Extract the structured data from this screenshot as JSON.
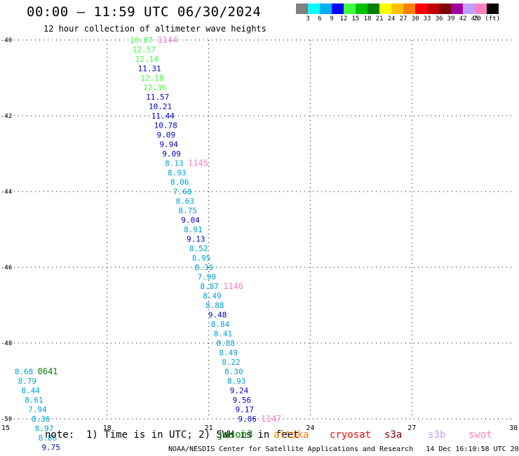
{
  "header": {
    "title": "00:00 – 11:59 UTC 06/30/2024",
    "subtitle": "12 hour collection of altimeter wave heights"
  },
  "colorbar": {
    "colors": [
      "#808080",
      "#00ffff",
      "#00b0f0",
      "#0000ff",
      "#40ff40",
      "#00c000",
      "#008000",
      "#ffff00",
      "#ffc000",
      "#ff8000",
      "#ff0000",
      "#c00000",
      "#800000",
      "#a000a0",
      "#c0a0ff",
      "#ff80c0",
      "#000000"
    ],
    "labels": [
      "3",
      "6",
      "9",
      "12",
      "15",
      "18",
      "21",
      "24",
      "27",
      "30",
      "33",
      "36",
      "39",
      "42",
      "45",
      "70 (ft)"
    ]
  },
  "map": {
    "lon_ticks": [
      "15",
      "18",
      "21",
      "24",
      "27",
      "30"
    ],
    "lat_ticks": [
      "-40",
      "-42",
      "-44",
      "-46",
      "-48",
      "-50"
    ],
    "lon_range": [
      15,
      30
    ],
    "lat_range": [
      -50,
      -40
    ],
    "grid": "dotted"
  },
  "tracks": [
    {
      "pass_label": "1144",
      "pass_color": "#ff80c0",
      "points": [
        {
          "lon": 18.5,
          "lat": -40.0,
          "swh": "10.87",
          "color": "#40ff40"
        },
        {
          "lon": 18.58,
          "lat": -40.25,
          "swh": "12.57",
          "color": "#40ff40"
        },
        {
          "lon": 18.66,
          "lat": -40.5,
          "swh": "12.14",
          "color": "#40ff40"
        },
        {
          "lon": 18.74,
          "lat": -40.75,
          "swh": "11.31",
          "color": "#0000cc"
        },
        {
          "lon": 18.82,
          "lat": -41.0,
          "swh": "12.18",
          "color": "#40ff40"
        },
        {
          "lon": 18.9,
          "lat": -41.25,
          "swh": "12.36",
          "color": "#40ff40"
        },
        {
          "lon": 18.98,
          "lat": -41.5,
          "swh": "11.57",
          "color": "#0000cc"
        },
        {
          "lon": 19.06,
          "lat": -41.75,
          "swh": "10.21",
          "color": "#0000cc"
        },
        {
          "lon": 19.14,
          "lat": -42.0,
          "swh": "11.44",
          "color": "#0000cc"
        },
        {
          "lon": 19.22,
          "lat": -42.25,
          "swh": "10.78",
          "color": "#0000cc"
        },
        {
          "lon": 19.3,
          "lat": -42.5,
          "swh": "9.09",
          "color": "#0000cc"
        },
        {
          "lon": 19.38,
          "lat": -42.75,
          "swh": "9.94",
          "color": "#0000cc"
        },
        {
          "lon": 19.46,
          "lat": -43.0,
          "swh": "9.09",
          "color": "#0000cc"
        }
      ]
    },
    {
      "pass_label": "1145",
      "pass_color": "#ff80c0",
      "points": [
        {
          "lon": 19.54,
          "lat": -43.25,
          "swh": "8.13",
          "color": "#00a0d8"
        },
        {
          "lon": 19.62,
          "lat": -43.5,
          "swh": "8.93",
          "color": "#00a0d8"
        },
        {
          "lon": 19.7,
          "lat": -43.75,
          "swh": "8.06",
          "color": "#00a0d8"
        },
        {
          "lon": 19.78,
          "lat": -44.0,
          "swh": "7.68",
          "color": "#00a0d8"
        },
        {
          "lon": 19.86,
          "lat": -44.25,
          "swh": "8.63",
          "color": "#00a0d8"
        },
        {
          "lon": 19.94,
          "lat": -44.5,
          "swh": "8.75",
          "color": "#00a0d8"
        },
        {
          "lon": 20.02,
          "lat": -44.75,
          "swh": "9.04",
          "color": "#0000cc"
        },
        {
          "lon": 20.1,
          "lat": -45.0,
          "swh": "8.91",
          "color": "#00a0d8"
        },
        {
          "lon": 20.18,
          "lat": -45.25,
          "swh": "9.13",
          "color": "#0000cc"
        },
        {
          "lon": 20.26,
          "lat": -45.5,
          "swh": "8.52",
          "color": "#00a0d8"
        },
        {
          "lon": 20.34,
          "lat": -45.75,
          "swh": "8.95",
          "color": "#00a0d8"
        },
        {
          "lon": 20.42,
          "lat": -46.0,
          "swh": "8.39",
          "color": "#00a0d8"
        },
        {
          "lon": 20.5,
          "lat": -46.25,
          "swh": "7.90",
          "color": "#00a0d8"
        }
      ]
    },
    {
      "pass_label": "1146",
      "pass_color": "#ff80c0",
      "points": [
        {
          "lon": 20.58,
          "lat": -46.5,
          "swh": "8.87",
          "color": "#00a0d8"
        },
        {
          "lon": 20.66,
          "lat": -46.75,
          "swh": "8.49",
          "color": "#00a0d8"
        },
        {
          "lon": 20.74,
          "lat": -47.0,
          "swh": "8.88",
          "color": "#00a0d8"
        },
        {
          "lon": 20.82,
          "lat": -47.25,
          "swh": "9.48",
          "color": "#0000cc"
        },
        {
          "lon": 20.9,
          "lat": -47.5,
          "swh": "8.84",
          "color": "#00a0d8"
        },
        {
          "lon": 20.98,
          "lat": -47.75,
          "swh": "8.41",
          "color": "#00a0d8"
        },
        {
          "lon": 21.06,
          "lat": -48.0,
          "swh": "8.88",
          "color": "#00a0d8"
        },
        {
          "lon": 21.14,
          "lat": -48.25,
          "swh": "8.49",
          "color": "#00a0d8"
        },
        {
          "lon": 21.22,
          "lat": -48.5,
          "swh": "8.22",
          "color": "#00a0d8"
        },
        {
          "lon": 21.3,
          "lat": -48.75,
          "swh": "8.30",
          "color": "#00a0d8"
        },
        {
          "lon": 21.38,
          "lat": -49.0,
          "swh": "8.93",
          "color": "#00a0d8"
        },
        {
          "lon": 21.46,
          "lat": -49.25,
          "swh": "9.24",
          "color": "#0000cc"
        },
        {
          "lon": 21.54,
          "lat": -49.5,
          "swh": "9.56",
          "color": "#0000cc"
        },
        {
          "lon": 21.62,
          "lat": -49.75,
          "swh": "9.17",
          "color": "#0000cc"
        }
      ]
    },
    {
      "pass_label": "1147",
      "pass_color": "#ff80c0",
      "points": [
        {
          "lon": 21.7,
          "lat": -50.0,
          "swh": "9.06",
          "color": "#0000cc"
        }
      ]
    },
    {
      "pass_label": "0641",
      "pass_color": "#008000",
      "points": [
        {
          "lon": 15.1,
          "lat": -48.75,
          "swh": "8.68",
          "color": "#00a0d8"
        },
        {
          "lon": 15.2,
          "lat": -49.0,
          "swh": "8.79",
          "color": "#00a0d8"
        },
        {
          "lon": 15.3,
          "lat": -49.25,
          "swh": "8.44",
          "color": "#00a0d8"
        },
        {
          "lon": 15.4,
          "lat": -49.5,
          "swh": "8.61",
          "color": "#00a0d8"
        },
        {
          "lon": 15.5,
          "lat": -49.75,
          "swh": "7.94",
          "color": "#00a0d8"
        },
        {
          "lon": 15.6,
          "lat": -50.0,
          "swh": "8.36",
          "color": "#00a0d8"
        },
        {
          "lon": 15.7,
          "lat": -50.25,
          "swh": "8.97",
          "color": "#00a0d8"
        },
        {
          "lon": 15.8,
          "lat": -50.5,
          "swh": "8.86",
          "color": "#00a0d8"
        },
        {
          "lon": 15.9,
          "lat": -50.75,
          "swh": "9.75",
          "color": "#0000cc"
        }
      ]
    }
  ],
  "footer": {
    "note": "note:  1) Time is in UTC; 2) SWH is in feet",
    "satellites": [
      {
        "name": "jason3",
        "color": "#008000"
      },
      {
        "name": "altika",
        "color": "#ff8000"
      },
      {
        "name": "cryosat",
        "color": "#ff0000"
      },
      {
        "name": "s3a",
        "color": "#800000"
      },
      {
        "name": "s3b",
        "color": "#c0a0ff"
      },
      {
        "name": "swot",
        "color": "#ff80c0"
      }
    ],
    "credit": "NOAA/NESDIS Center for Satellite Applications and Research   14 Dec 16:10:58 UTC 2024"
  }
}
